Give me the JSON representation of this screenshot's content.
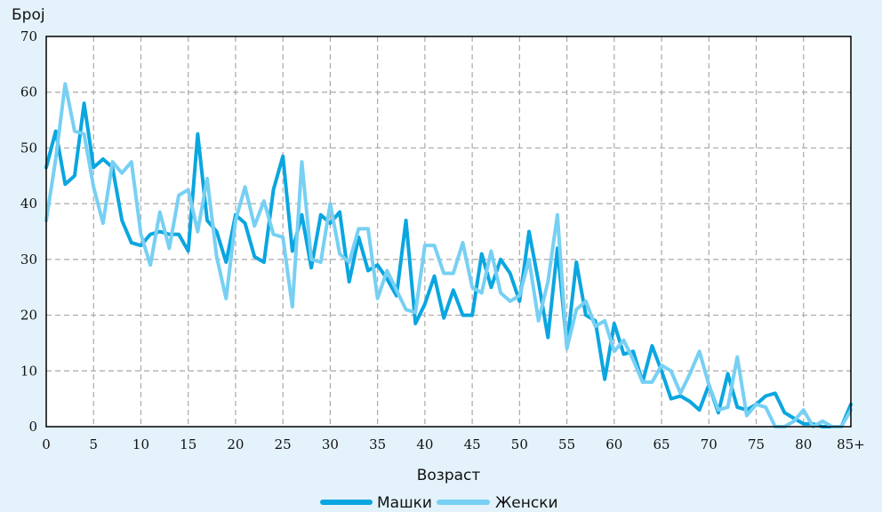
{
  "colors": {
    "background": "#e3f2fb",
    "plot_background": "#ffffff",
    "grid": "#a9a9a9",
    "male": "#0aa6e0",
    "female": "#77d0f3"
  },
  "chart_data": {
    "type": "line",
    "ylabel": "Број",
    "xlabel": "Возраст",
    "ylim": [
      0,
      70
    ],
    "xlim": [
      0,
      85
    ],
    "y_ticks": [
      0,
      10,
      20,
      30,
      40,
      50,
      60,
      70
    ],
    "x_ticks": [
      0,
      5,
      10,
      15,
      20,
      25,
      30,
      35,
      40,
      45,
      50,
      55,
      60,
      65,
      70,
      75,
      80,
      85
    ],
    "x_tick_labels": [
      "0",
      "5",
      "10",
      "15",
      "20",
      "25",
      "30",
      "35",
      "40",
      "45",
      "50",
      "55",
      "60",
      "65",
      "70",
      "75",
      "80",
      "85+"
    ],
    "grid": true,
    "legend_position": "bottom-center",
    "x": [
      0,
      1,
      2,
      3,
      4,
      5,
      6,
      7,
      8,
      9,
      10,
      11,
      12,
      13,
      14,
      15,
      16,
      17,
      18,
      19,
      20,
      21,
      22,
      23,
      24,
      25,
      26,
      27,
      28,
      29,
      30,
      31,
      32,
      33,
      34,
      35,
      36,
      37,
      38,
      39,
      40,
      41,
      42,
      43,
      44,
      45,
      46,
      47,
      48,
      49,
      50,
      51,
      52,
      53,
      54,
      55,
      56,
      57,
      58,
      59,
      60,
      61,
      62,
      63,
      64,
      65,
      66,
      67,
      68,
      69,
      70,
      71,
      72,
      73,
      74,
      75,
      76,
      77,
      78,
      79,
      80,
      81,
      82,
      83,
      84,
      85
    ],
    "series": [
      {
        "name": "Машки",
        "values": [
          46.5,
          53,
          43.5,
          45,
          58,
          46.5,
          48,
          46.5,
          37,
          33,
          32.5,
          34.5,
          35,
          34.5,
          34.5,
          31.5,
          52.5,
          37,
          35,
          29.5,
          38,
          36.5,
          30.5,
          29.5,
          42.5,
          48.5,
          31.5,
          38,
          28.5,
          38,
          36.5,
          38.5,
          26,
          34,
          28,
          29,
          26.5,
          23.5,
          37,
          18.5,
          22,
          27,
          19.5,
          24.5,
          20,
          20,
          31,
          25,
          30,
          27.5,
          22.5,
          35,
          26,
          16,
          32,
          14.5,
          29.5,
          20,
          19,
          8.5,
          18.5,
          13,
          13.5,
          8,
          14.5,
          10,
          5,
          5.5,
          4.5,
          3,
          7.5,
          2.5,
          9.5,
          3.5,
          3,
          4,
          5.5,
          6,
          2.5,
          1.5,
          0.5,
          0.5,
          0,
          0,
          0,
          4
        ]
      },
      {
        "name": "Женски",
        "values": [
          37,
          48,
          61.5,
          53,
          52.5,
          43,
          36.5,
          47.5,
          45.5,
          47.5,
          34.5,
          29,
          38.5,
          32,
          41.5,
          42.5,
          35,
          44.5,
          30.5,
          23,
          37,
          43,
          36,
          40.5,
          34.5,
          34,
          21.5,
          47.5,
          30,
          29.5,
          40,
          31,
          29.5,
          35.5,
          35.5,
          23,
          28,
          24.5,
          21,
          20.5,
          32.5,
          32.5,
          27.5,
          27.5,
          33,
          25,
          24,
          31.5,
          24,
          22.5,
          23.5,
          30,
          19,
          26,
          38,
          14,
          21,
          22.5,
          18,
          19,
          13.5,
          15.5,
          12,
          8,
          8,
          11,
          10,
          6,
          9.5,
          13.5,
          7.5,
          3,
          3.5,
          12.5,
          2,
          4,
          3.5,
          0,
          0,
          1,
          3,
          0,
          1,
          0,
          0,
          3
        ]
      }
    ]
  }
}
